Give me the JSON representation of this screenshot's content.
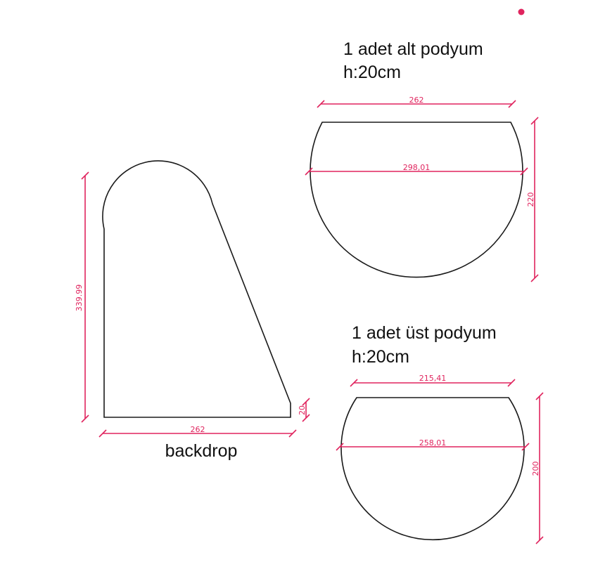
{
  "colors": {
    "outline": "#1a1a1a",
    "dimension": "#e0245e",
    "marker": "#e0245e"
  },
  "backdrop": {
    "name": "backdrop",
    "height_dim": "339.99",
    "width_dim": "262",
    "side_dim": "20"
  },
  "lower_podium": {
    "title_line1": "1 adet alt podyum",
    "title_line2": "h:20cm",
    "top_width_dim": "262",
    "diameter_dim": "298,01",
    "height_dim": "220"
  },
  "upper_podium": {
    "title_line1": "1 adet üst podyum",
    "title_line2": "h:20cm",
    "top_width_dim": "215,41",
    "diameter_dim": "258,01",
    "height_dim": "200"
  }
}
